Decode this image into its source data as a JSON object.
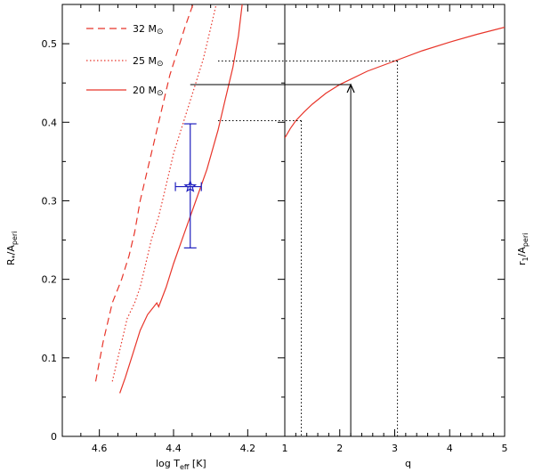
{
  "chart_data": [
    {
      "type": "line",
      "panel": "left",
      "xlabel": "log T_eff [K]",
      "ylabel": "R*/A_peri",
      "xlim": [
        4.7,
        4.1
      ],
      "ylim": [
        0,
        0.55
      ],
      "x_ticks": [
        4.6,
        4.4,
        4.2
      ],
      "y_ticks": [
        0,
        0.1,
        0.2,
        0.3,
        0.4,
        0.5
      ],
      "legend": {
        "placement": "top-left",
        "entries": [
          {
            "label": "32 M⊙",
            "style": "dashed",
            "color": "#e8352a"
          },
          {
            "label": "25 M⊙",
            "style": "dotted",
            "color": "#e8352a"
          },
          {
            "label": "20 M⊙",
            "style": "solid",
            "color": "#e8352a"
          }
        ]
      },
      "series": [
        {
          "style": "dashed",
          "x": [
            4.61,
            4.59,
            4.565,
            4.54,
            4.53,
            4.52,
            4.505,
            4.49,
            4.47,
            4.45,
            4.43,
            4.41,
            4.39,
            4.37,
            4.355,
            4.34
          ],
          "y": [
            0.07,
            0.12,
            0.17,
            0.2,
            0.215,
            0.23,
            0.26,
            0.3,
            0.34,
            0.38,
            0.42,
            0.46,
            0.49,
            0.52,
            0.54,
            0.56
          ]
        },
        {
          "style": "dotted",
          "x": [
            4.565,
            4.545,
            4.525,
            4.505,
            4.49,
            4.485,
            4.475,
            4.46,
            4.44,
            4.42,
            4.4,
            4.38,
            4.36,
            4.34,
            4.32,
            4.3,
            4.285
          ],
          "y": [
            0.07,
            0.11,
            0.15,
            0.17,
            0.19,
            0.2,
            0.22,
            0.25,
            0.28,
            0.32,
            0.36,
            0.39,
            0.42,
            0.45,
            0.48,
            0.52,
            0.55
          ]
        },
        {
          "style": "solid",
          "x": [
            4.545,
            4.53,
            4.51,
            4.49,
            4.47,
            4.445,
            4.44,
            4.42,
            4.4,
            4.37,
            4.34,
            4.31,
            4.28,
            4.26,
            4.24,
            4.225,
            4.215
          ],
          "y": [
            0.055,
            0.075,
            0.105,
            0.135,
            0.155,
            0.17,
            0.165,
            0.19,
            0.22,
            0.26,
            0.3,
            0.34,
            0.39,
            0.43,
            0.47,
            0.51,
            0.55
          ]
        }
      ],
      "data_point": {
        "x": 4.355,
        "y": 0.318,
        "x_err": [
          4.325,
          4.395
        ],
        "y_err": [
          0.24,
          0.398
        ],
        "color": "#1e1ebe"
      }
    },
    {
      "type": "line",
      "panel": "right",
      "xlabel": "q",
      "ylabel": "r1/A_peri",
      "xlim": [
        1,
        5
      ],
      "ylim": [
        0,
        0.55
      ],
      "x_ticks": [
        1,
        2,
        3,
        4,
        5
      ],
      "series": [
        {
          "style": "solid",
          "color": "#e8352a",
          "x": [
            1,
            1.1,
            1.2,
            1.35,
            1.5,
            1.75,
            2,
            2.5,
            3,
            3.5,
            4,
            4.5,
            5
          ],
          "y": [
            0.38,
            0.392,
            0.402,
            0.413,
            0.423,
            0.437,
            0.448,
            0.465,
            0.478,
            0.491,
            0.502,
            0.512,
            0.521
          ]
        }
      ],
      "guides": [
        {
          "style": "dotted",
          "y": 0.478,
          "q": 3.05
        },
        {
          "style": "dotted",
          "y": 0.402,
          "q": 1.3
        },
        {
          "style": "solid",
          "y": 0.448,
          "q": 2.2
        }
      ]
    }
  ],
  "labels": {
    "left_x": "log T",
    "left_x_sub": "eff",
    "left_x_unit": " [K]",
    "left_y_main": "R",
    "left_y_star": "*",
    "left_y_rest": "/A",
    "left_y_sub": "peri",
    "right_x": "q",
    "right_y_main": "r",
    "right_y_sub1": "1",
    "right_y_rest": "/A",
    "right_y_sub2": "peri",
    "legend_0_num": "32 M",
    "legend_1_num": "25 M",
    "legend_2_num": "20 M",
    "legend_sym": "⊙"
  }
}
